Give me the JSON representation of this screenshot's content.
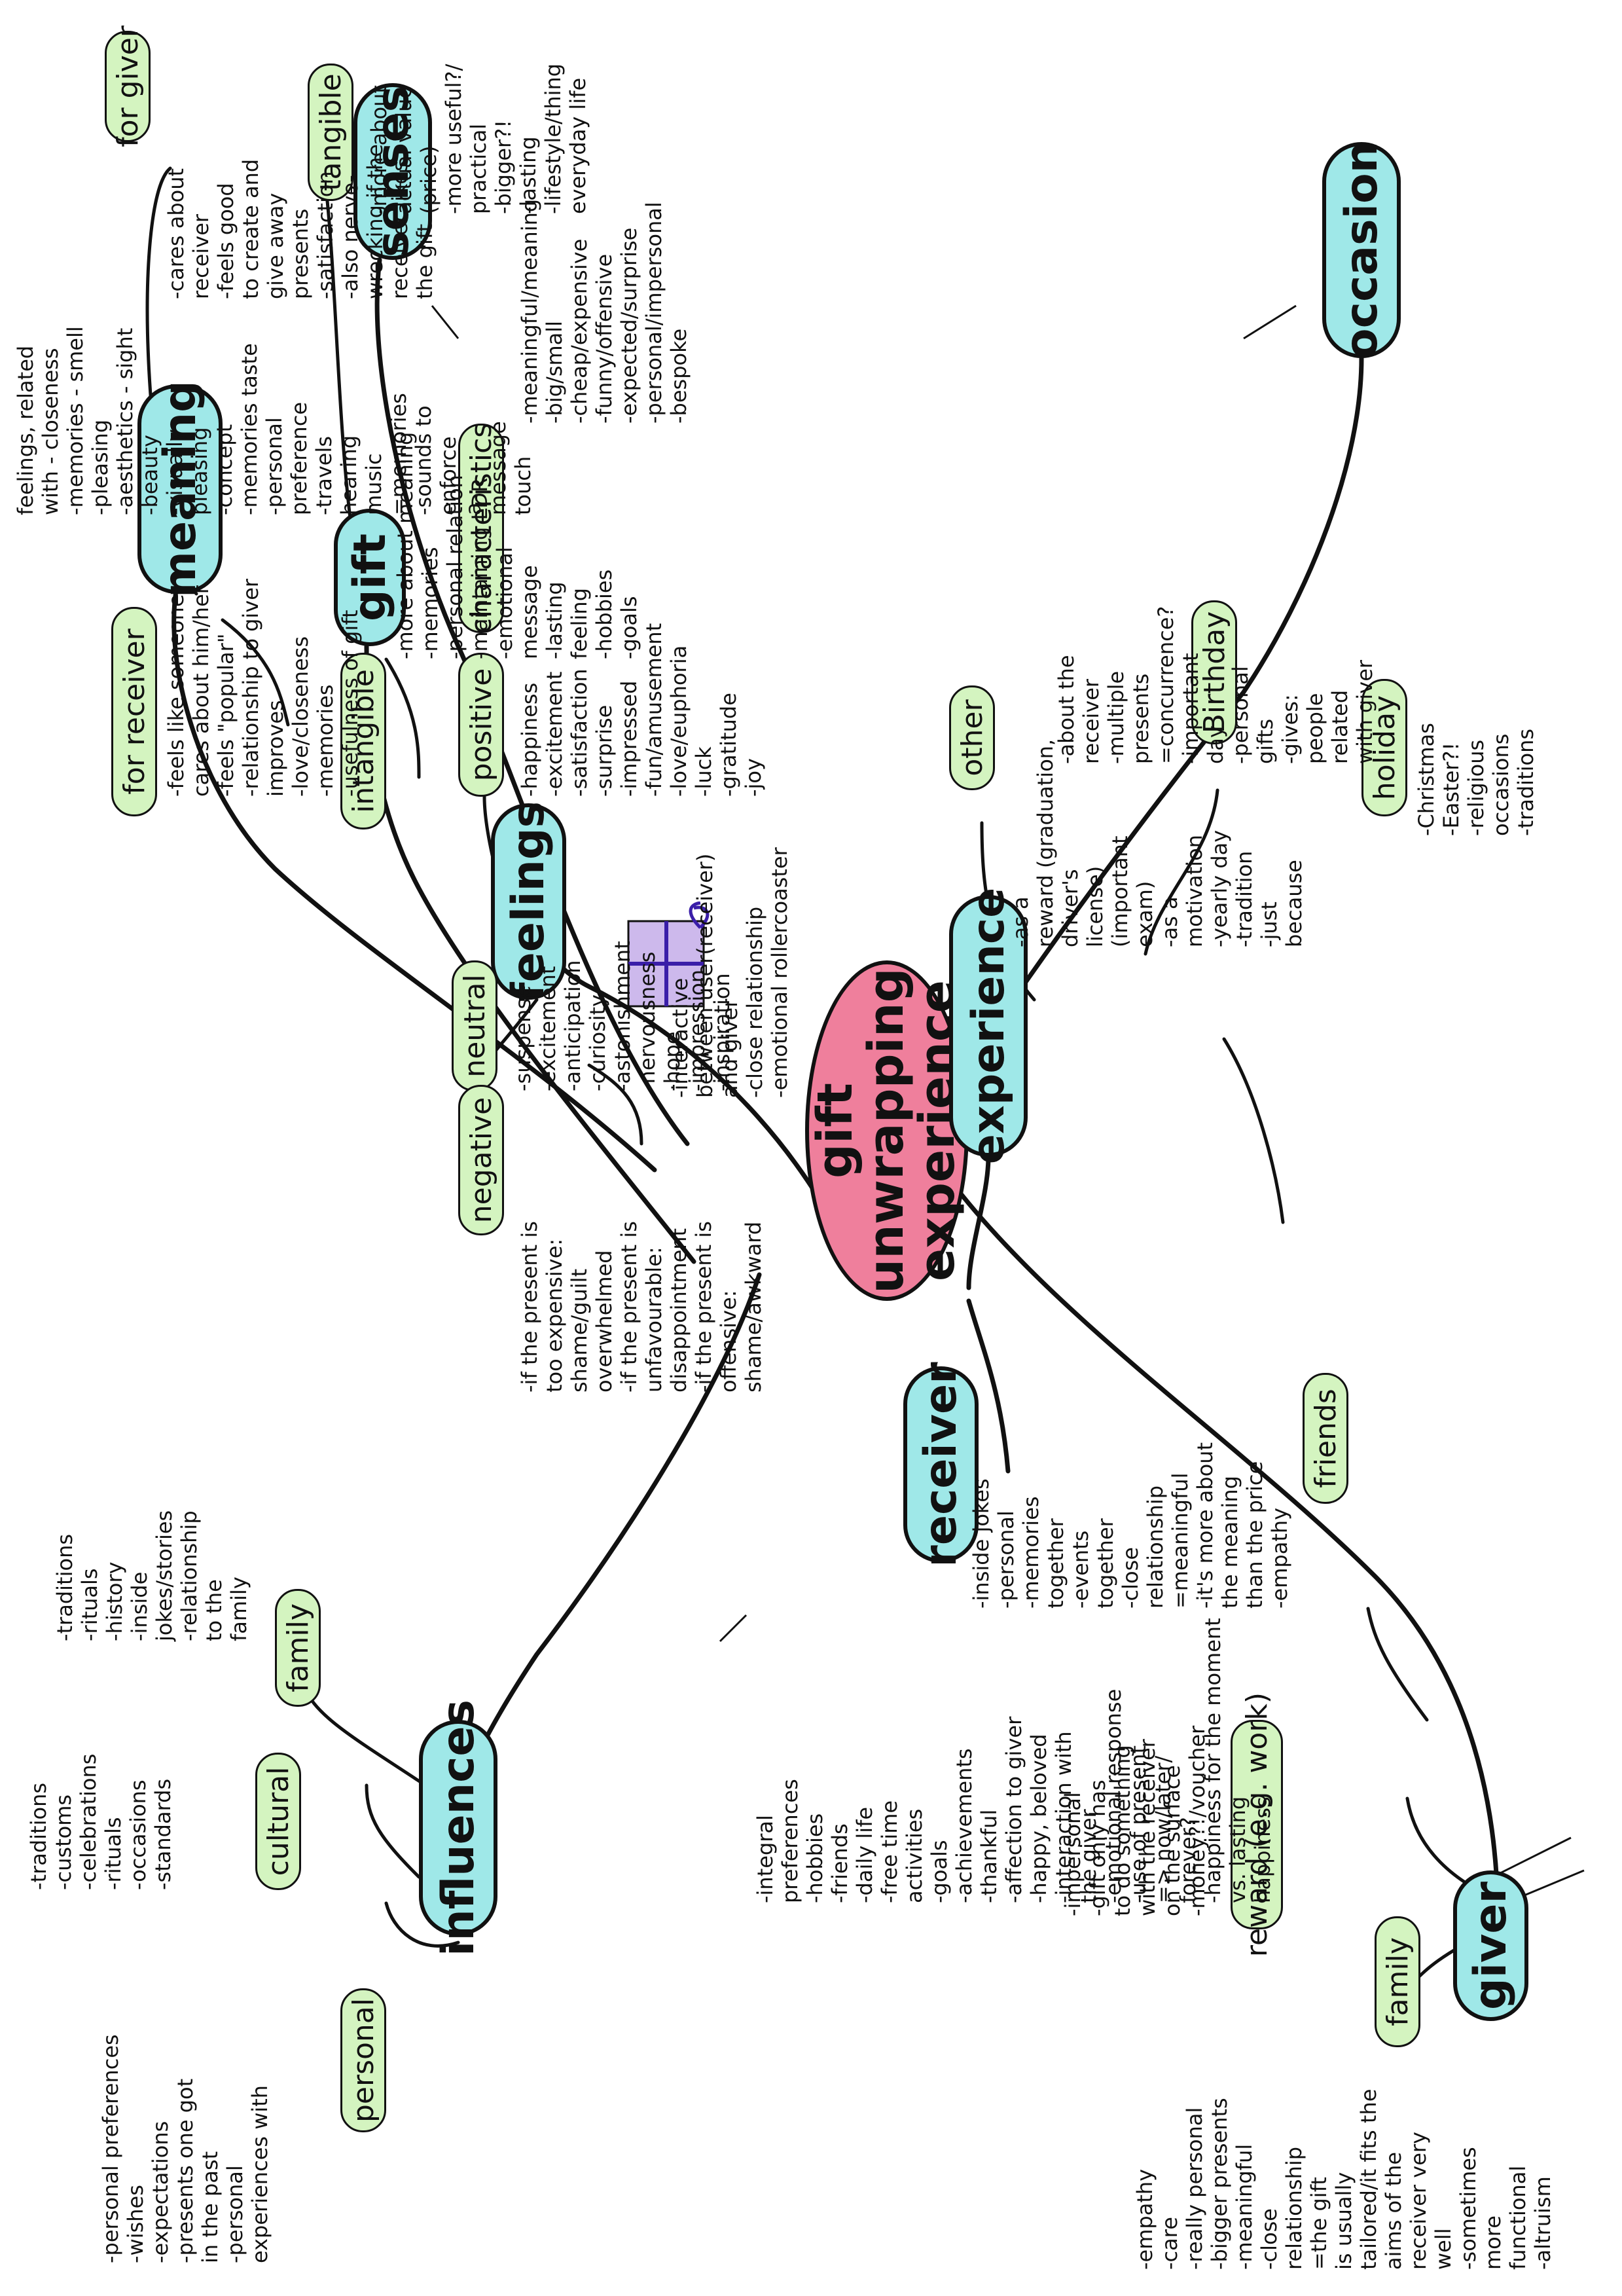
{
  "center": {
    "label": "gift unwrapping experience"
  },
  "colors": {
    "center": "#ef7f9c",
    "main": "#9fe8e8",
    "sub": "#d4f4c0",
    "ink": "#111111",
    "giftbox": "#cdb9ec"
  },
  "icons": {
    "gift_box": "gift-box-icon"
  },
  "branches": {
    "senses": {
      "label": "senses",
      "lines": [
        "feelings, related",
        "with - closeness",
        "-memories - smell",
        "-pleasing",
        "-aesthetics - sight",
        "-beauty",
        "-visually",
        "pleasing",
        "-concept",
        "-memories taste",
        "-personal",
        "preference",
        "-travels",
        "hearing",
        "music",
        "=memories",
        "-sounds to",
        "enforce",
        "a",
        "message",
        "touch"
      ]
    },
    "meaning": {
      "label": "meaning",
      "for_giver": {
        "label": "for giver",
        "lines": [
          "-cares about",
          "receiver",
          "-feels good",
          "to create and",
          "give away",
          "presents",
          "-satisfaction",
          "-also nerve-",
          "wrecking if the",
          "receiver likes",
          "the gift"
        ]
      },
      "for_receiver": {
        "label": "for receiver",
        "lines": [
          "-feels like someone",
          "cares about him/her",
          "-feels \"popular\"",
          "-relationship to giver",
          "improves",
          "-love/closeness",
          "-memories",
          "-usefulness of gift"
        ]
      }
    },
    "gift": {
      "label": "gift",
      "tangible": {
        "label": "tangible",
        "lines": [
          "-more about",
          "actual value",
          "(price)",
          "-more useful?/",
          "practical",
          "-bigger?!",
          "-lasting",
          "-lifestyle/thing",
          "everyday life"
        ]
      },
      "intangible": {
        "label": "intangible",
        "lines": [
          "-more about meaning",
          "-memories",
          "-personal relation",
          "-maintaining LDR",
          "-emotional",
          "message",
          "-lasting",
          "feeling",
          "-hobbies",
          "-goals"
        ]
      },
      "characteristics": {
        "label": "characteristics",
        "lines": [
          "-meaningful/meaning",
          "-big/small",
          "-cheap/expensive",
          "-funny/offensive",
          "-expected/surprise",
          "-personal/impersonal",
          "-bespoke"
        ]
      }
    },
    "feelings": {
      "label": "feelings",
      "positive": {
        "label": "positive",
        "lines": [
          "-happiness",
          "-excitement",
          "-satisfaction",
          "-surprise",
          "-impressed",
          "-fun/amusement",
          "-love/euphoria",
          "-luck",
          "-gratitude",
          "-joy"
        ]
      },
      "neutral": {
        "label": "neutral",
        "lines": [
          "-suspense",
          "-excitement",
          "-anticipation",
          "-curiosity",
          "-astonishment",
          "-nervousness",
          "-hope",
          "-impression",
          "-inspiration"
        ]
      },
      "negative": {
        "label": "negative",
        "lines": [
          "-if the present is",
          "too expensive:",
          "shame/guilt",
          "overwhelmed",
          "-if the present is",
          "unfavourable:",
          "disappointment",
          "-if the present is",
          "offensive:",
          "shame/awkward"
        ]
      }
    },
    "experience": {
      "label": "experience",
      "lines": [
        "-interactive",
        "between user(receiver)",
        "and giver",
        "-close relationship",
        "-emotional rollercoaster"
      ]
    },
    "occasion": {
      "label": "occasion",
      "other": {
        "label": "other",
        "lines": [
          "-as a",
          "reward (graduation,",
          "driver's",
          "license)",
          "(important",
          "exam)",
          "-as a",
          "motivation",
          "-yearly day",
          "-tradition",
          "-just",
          "because"
        ]
      },
      "birthday": {
        "label": "Birthday",
        "lines": [
          "-about the",
          "receiver",
          "-multiple",
          "presents",
          "=concurrence?",
          "-important",
          "day",
          "-personal",
          "gifts",
          "-gives:",
          "people",
          "related",
          "with giver"
        ]
      },
      "holiday": {
        "label": "holiday",
        "lines": [
          "-Christmas",
          "-Easter?!",
          "-religious",
          "occasions",
          "-traditions"
        ]
      }
    },
    "giver": {
      "label": "giver",
      "friends": {
        "label": "friends",
        "lines": [
          "-inside jokes",
          "-personal",
          "-memories",
          "together",
          "-events",
          "together",
          "-close",
          "relationship",
          "=meaningful",
          "-it's more about",
          "the meaning",
          "than the price",
          "-empathy"
        ]
      },
      "family": {
        "label": "family",
        "lines": [
          "-empathy",
          "-care",
          "-really personal",
          "-bigger presents",
          "-meaningful",
          "-close",
          "relationship",
          "=the gift",
          "is usually",
          "tailored/it fits the",
          "aims of the",
          "receiver very",
          "well",
          "-sometimes",
          "more",
          "functional",
          "-altruism"
        ]
      },
      "reward": {
        "label": "reward (e.g. work)",
        "lines": [
          "-impersonal",
          "-gift only has",
          "to do something",
          "with the receiver",
          "on the surface",
          "-money?!/voucher"
        ]
      }
    },
    "receiver": {
      "label": "receiver",
      "lines": [
        "-integral",
        "preferences",
        "-hobbies",
        "-friends",
        "-daily life",
        "-free time",
        "activities",
        "-goals",
        "-achievements",
        "-thankful",
        "-affection to giver",
        "-happy, beloved",
        "-interaction with",
        "the giver",
        "-emotional response",
        "-use of present",
        "=> now/later/",
        "forever?",
        "-happiness for the moment",
        "vs. lasting",
        "happiness"
      ]
    },
    "influences": {
      "label": "influences",
      "family": {
        "label": "family",
        "lines": [
          "-traditions",
          "-rituals",
          "-history",
          "-inside",
          "jokes/stories",
          "-relationship",
          "to the",
          "family"
        ]
      },
      "cultural": {
        "label": "cultural",
        "lines": [
          "-traditions",
          "-customs",
          "-celebrations",
          "-rituals",
          "-occasions",
          "-standards"
        ]
      },
      "personal": {
        "label": "personal",
        "lines": [
          "-personal preferences",
          "-wishes",
          "-expectations",
          "-presents one got",
          "in the past",
          "-personal",
          "experiences with"
        ]
      }
    }
  }
}
